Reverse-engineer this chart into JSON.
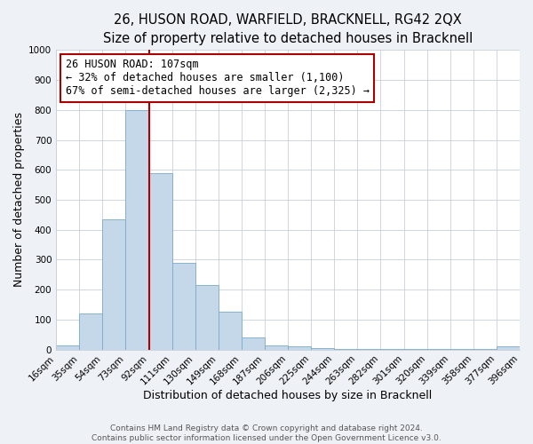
{
  "title": "26, HUSON ROAD, WARFIELD, BRACKNELL, RG42 2QX",
  "subtitle": "Size of property relative to detached houses in Bracknell",
  "xlabel": "Distribution of detached houses by size in Bracknell",
  "ylabel": "Number of detached properties",
  "bar_labels": [
    "16sqm",
    "35sqm",
    "54sqm",
    "73sqm",
    "92sqm",
    "111sqm",
    "130sqm",
    "149sqm",
    "168sqm",
    "187sqm",
    "206sqm",
    "225sqm",
    "244sqm",
    "263sqm",
    "282sqm",
    "301sqm",
    "320sqm",
    "339sqm",
    "358sqm",
    "377sqm",
    "396sqm"
  ],
  "bar_values": [
    15,
    120,
    435,
    800,
    590,
    290,
    215,
    125,
    40,
    15,
    10,
    5,
    2,
    2,
    1,
    1,
    1,
    1,
    1,
    10
  ],
  "bar_color": "#c5d8ea",
  "bar_edge_color": "#7baac8",
  "vline_color": "#aa0000",
  "annotation_line1": "26 HUSON ROAD: 107sqm",
  "annotation_line2": "← 32% of detached houses are smaller (1,100)",
  "annotation_line3": "67% of semi-detached houses are larger (2,325) →",
  "annotation_box_color": "#ffffff",
  "annotation_box_edge": "#aa0000",
  "ylim": [
    0,
    1000
  ],
  "yticks": [
    0,
    100,
    200,
    300,
    400,
    500,
    600,
    700,
    800,
    900,
    1000
  ],
  "footer1": "Contains HM Land Registry data © Crown copyright and database right 2024.",
  "footer2": "Contains public sector information licensed under the Open Government Licence v3.0.",
  "background_color": "#eef2f7",
  "plot_bg_color": "#ffffff",
  "title_fontsize": 10.5,
  "axis_label_fontsize": 9,
  "tick_fontsize": 7.5,
  "annotation_fontsize": 8.5,
  "footer_fontsize": 6.5,
  "grid_color": "#c8d0dc"
}
